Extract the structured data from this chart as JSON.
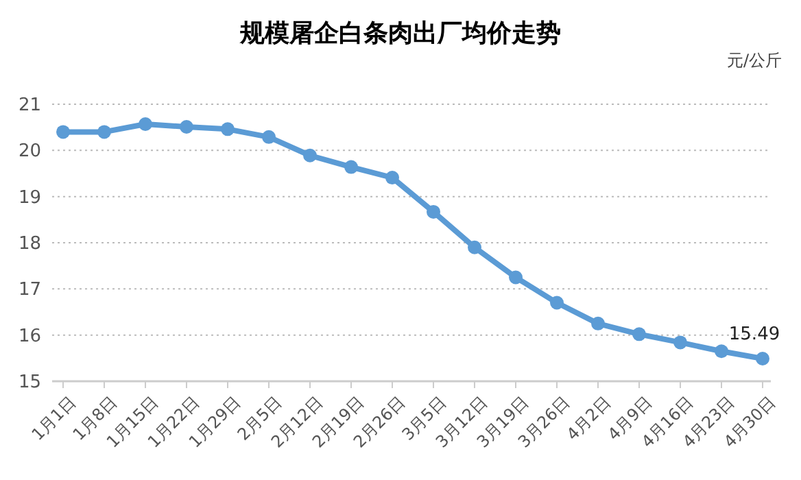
{
  "chart_data": {
    "type": "line",
    "title": "规模屠企白条肉出厂均价走势",
    "annotations": [
      "元/公斤"
    ],
    "categories": [
      "1月1日",
      "1月8日",
      "1月15日",
      "1月22日",
      "1月29日",
      "2月5日",
      "2月12日",
      "2月19日",
      "2月26日",
      "3月5日",
      "3月12日",
      "3月19日",
      "3月26日",
      "4月2日",
      "4月9日",
      "4月16日",
      "4月23日",
      "4月30日"
    ],
    "series": [
      {
        "color": "#5b9bd5",
        "values": [
          20.4,
          20.4,
          20.57,
          20.51,
          20.46,
          20.29,
          19.89,
          19.64,
          19.41,
          18.67,
          17.9,
          17.25,
          16.7,
          16.25,
          16.02,
          15.84,
          15.65,
          15.49
        ],
        "value_labels": [
          null,
          null,
          null,
          null,
          null,
          null,
          null,
          null,
          null,
          null,
          null,
          null,
          null,
          null,
          null,
          null,
          null,
          "15.49"
        ]
      }
    ],
    "ylim": [
      15,
      21
    ],
    "yticks": [
      15,
      16,
      17,
      18,
      19,
      20,
      21
    ],
    "grid": "y",
    "marker": "circle",
    "line_style": "solid"
  }
}
